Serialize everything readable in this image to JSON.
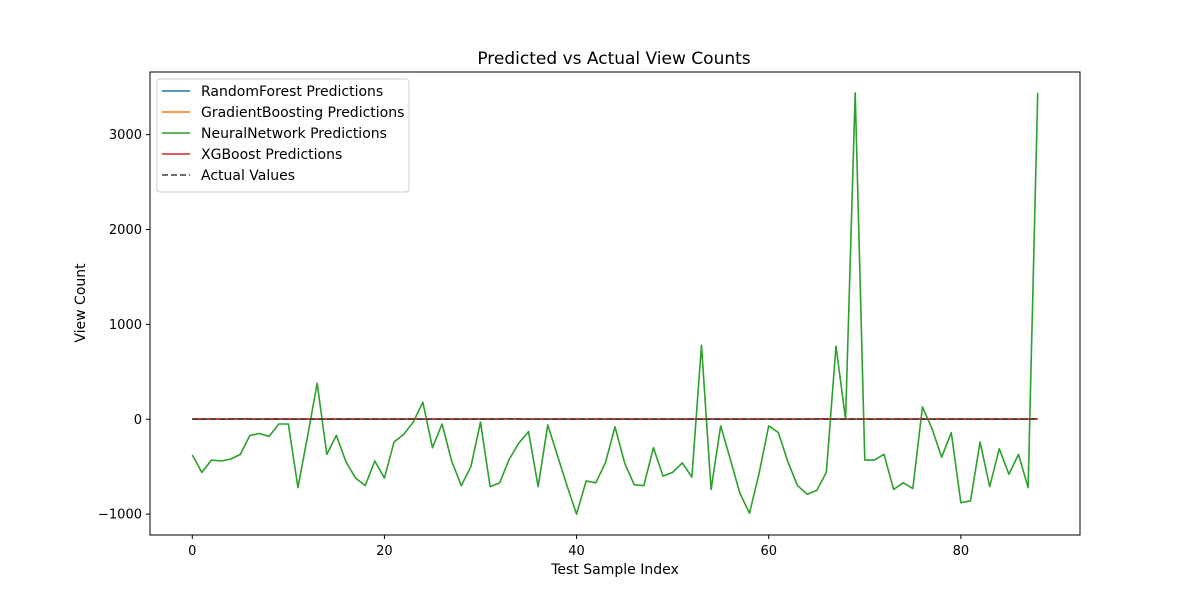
{
  "chart_data": {
    "type": "line",
    "title": "Predicted vs Actual View Counts",
    "xlabel": "Test Sample Index",
    "ylabel": "View Count",
    "xlim": [
      -4.4,
      92.4
    ],
    "ylim": [
      -1220,
      3660
    ],
    "xticks": [
      0,
      20,
      40,
      60,
      80
    ],
    "yticks": [
      -1000,
      0,
      1000,
      2000,
      3000
    ],
    "ytick_labels": [
      "−1000",
      "0",
      "1000",
      "2000",
      "3000"
    ],
    "grid": false,
    "legend_position": "top-left",
    "series": [
      {
        "name": "RandomForest Predictions",
        "color": "#1f77b4",
        "dash": "solid",
        "values": [
          2,
          3,
          2,
          3,
          4,
          3,
          2,
          3,
          3,
          2,
          2,
          3,
          2,
          3,
          2,
          3,
          2,
          2,
          3,
          2,
          3,
          2,
          3,
          2,
          3,
          2,
          2,
          3,
          2,
          3,
          2,
          3,
          3,
          4,
          3,
          2,
          2,
          1,
          2,
          2,
          3,
          2,
          3,
          2,
          3,
          2,
          2,
          3,
          2,
          2,
          3,
          2,
          2,
          3,
          2,
          2,
          3,
          2,
          2,
          3,
          2,
          3,
          2,
          3,
          2,
          4,
          3,
          2,
          3,
          2,
          3,
          2,
          3,
          2,
          3,
          2,
          3,
          2,
          2,
          3,
          2,
          3,
          2,
          2,
          3,
          2,
          3,
          2,
          3
        ]
      },
      {
        "name": "GradientBoosting Predictions",
        "color": "#ff7f0e",
        "dash": "solid",
        "values": [
          2,
          3,
          3,
          2,
          3,
          4,
          2,
          3,
          3,
          2,
          2,
          2,
          3,
          3,
          2,
          3,
          2,
          3,
          2,
          3,
          3,
          2,
          3,
          2,
          2,
          3,
          2,
          3,
          2,
          2,
          3,
          3,
          3,
          4,
          3,
          2,
          2,
          2,
          3,
          2,
          3,
          2,
          3,
          2,
          2,
          3,
          2,
          3,
          2,
          2,
          3,
          2,
          2,
          3,
          2,
          3,
          3,
          2,
          2,
          3,
          2,
          2,
          3,
          3,
          2,
          4,
          3,
          2,
          3,
          2,
          3,
          2,
          3,
          2,
          2,
          3,
          3,
          2,
          2,
          3,
          2,
          3,
          2,
          2,
          3,
          2,
          3,
          2,
          3
        ]
      },
      {
        "name": "NeuralNetwork Predictions",
        "color": "#2ca02c",
        "dash": "solid",
        "values": [
          -375,
          -560,
          -430,
          -440,
          -420,
          -370,
          -170,
          -150,
          -180,
          -50,
          -50,
          -720,
          -180,
          380,
          -370,
          -170,
          -450,
          -620,
          -700,
          -440,
          -620,
          -240,
          -160,
          -30,
          180,
          -300,
          -50,
          -440,
          -700,
          -500,
          -30,
          -710,
          -670,
          -420,
          -250,
          -130,
          -710,
          -60,
          -380,
          -700,
          -1000,
          -650,
          -670,
          -460,
          -80,
          -460,
          -690,
          -700,
          -300,
          -600,
          -560,
          -460,
          -610,
          780,
          -740,
          -70,
          -420,
          -780,
          -990,
          -570,
          -70,
          -140,
          -450,
          -700,
          -790,
          -750,
          -560,
          770,
          0,
          3440,
          -430,
          -430,
          -370,
          -740,
          -670,
          -730,
          130,
          -100,
          -400,
          -140,
          -880,
          -860,
          -240,
          -710,
          -310,
          -580,
          -370,
          -720,
          3440
        ]
      },
      {
        "name": "XGBoost Predictions",
        "color": "#d62728",
        "dash": "solid",
        "values": [
          3,
          2,
          3,
          2,
          3,
          4,
          3,
          2,
          3,
          2,
          3,
          2,
          3,
          2,
          2,
          3,
          2,
          3,
          2,
          3,
          2,
          3,
          2,
          3,
          2,
          3,
          2,
          2,
          3,
          2,
          3,
          2,
          3,
          4,
          3,
          2,
          2,
          2,
          3,
          2,
          3,
          2,
          3,
          2,
          3,
          2,
          2,
          3,
          2,
          3,
          2,
          2,
          3,
          2,
          3,
          2,
          2,
          3,
          2,
          2,
          3,
          2,
          3,
          2,
          2,
          4,
          3,
          2,
          3,
          2,
          3,
          2,
          3,
          2,
          3,
          2,
          3,
          2,
          3,
          2,
          3,
          2,
          3,
          2,
          2,
          3,
          2,
          3,
          2
        ]
      },
      {
        "name": "Actual Values",
        "color": "#404040",
        "dash": "dashed",
        "values": [
          1,
          1,
          2,
          1,
          1,
          2,
          1,
          1,
          1,
          1,
          1,
          1,
          1,
          1,
          1,
          1,
          1,
          1,
          1,
          1,
          1,
          1,
          1,
          1,
          1,
          1,
          1,
          1,
          1,
          1,
          1,
          1,
          1,
          2,
          1,
          1,
          1,
          1,
          1,
          1,
          1,
          1,
          1,
          1,
          1,
          1,
          1,
          1,
          1,
          1,
          1,
          1,
          1,
          1,
          1,
          1,
          1,
          1,
          1,
          1,
          1,
          1,
          1,
          1,
          1,
          2,
          1,
          1,
          1,
          1,
          1,
          1,
          1,
          1,
          1,
          1,
          1,
          1,
          1,
          1,
          1,
          1,
          1,
          1,
          1,
          1,
          1,
          1,
          1
        ]
      }
    ]
  }
}
